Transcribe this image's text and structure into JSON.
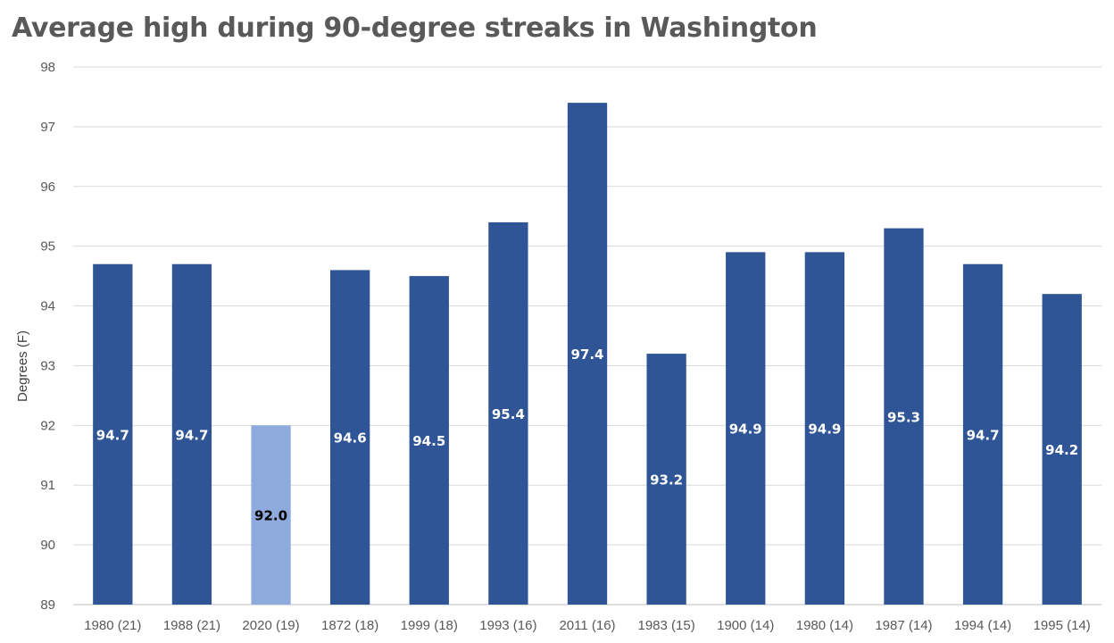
{
  "chart_data": {
    "type": "bar",
    "title": "Average high during 90-degree streaks in Washington",
    "xlabel": "",
    "ylabel": "Degrees (F)",
    "categories": [
      "1980 (21)",
      "1988 (21)",
      "2020 (19)",
      "1872 (18)",
      "1999 (18)",
      "1993 (16)",
      "2011 (16)",
      "1983 (15)",
      "1900 (14)",
      "1980 (14)",
      "1987 (14)",
      "1994 (14)",
      "1995 (14)"
    ],
    "values": [
      94.7,
      94.7,
      92.0,
      94.6,
      94.5,
      95.4,
      97.4,
      93.2,
      94.9,
      94.9,
      95.3,
      94.7,
      94.2
    ],
    "data_labels": [
      "94.7",
      "94.7",
      "92.0",
      "94.6",
      "94.5",
      "95.4",
      "97.4",
      "93.2",
      "94.9",
      "94.9",
      "95.3",
      "94.7",
      "94.2"
    ],
    "highlight_index": 2,
    "ylim": [
      89,
      98
    ],
    "yticks": [
      "89",
      "90",
      "91",
      "92",
      "93",
      "94",
      "95",
      "96",
      "97",
      "98"
    ],
    "grid": true,
    "legend": "none",
    "colors": {
      "bar": "#2f5597",
      "highlight": "#8faadc",
      "label_on_bar": "#ffffff",
      "label_on_highlight": "#000000",
      "grid": "#d9d9d9"
    }
  }
}
